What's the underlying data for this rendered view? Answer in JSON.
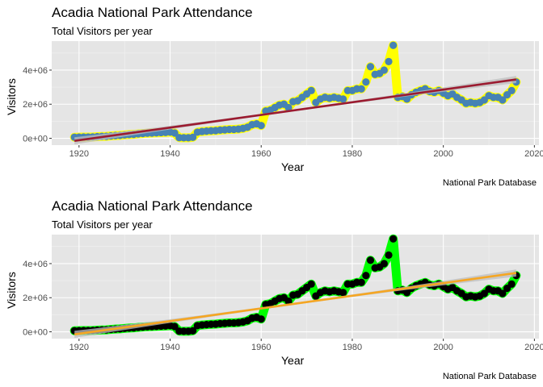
{
  "chart_data": [
    {
      "type": "line",
      "title": "Acadia National Park Attendance",
      "subtitle": "Total Visitors per year",
      "caption": "National Park Database",
      "xlabel": "Year",
      "ylabel": "Visitors",
      "xlim": [
        1914,
        2021
      ],
      "ylim": [
        -400000,
        5700000
      ],
      "x_ticks": [
        1920,
        1940,
        1960,
        1980,
        2000,
        2020
      ],
      "x_tick_labels": [
        "1920",
        "1940",
        "1960",
        "1980",
        "2000",
        "2020"
      ],
      "y_ticks": [
        0,
        2000000,
        4000000
      ],
      "y_tick_labels": [
        "0e+00",
        "2e+06",
        "4e+06"
      ],
      "grid": true,
      "colors": {
        "halo": "#ffff00",
        "points": "#4682b4",
        "trend": "#9b1b30",
        "band": "#bdbdbd",
        "background": "#e5e5e5"
      },
      "trend": {
        "x": [
          1919,
          2016
        ],
        "y": [
          -150000,
          3450000
        ]
      },
      "series": [
        {
          "x": [
            1919,
            1920,
            1921,
            1922,
            1923,
            1924,
            1925,
            1926,
            1927,
            1928,
            1929,
            1930,
            1931,
            1932,
            1933,
            1934,
            1935,
            1936,
            1937,
            1938,
            1939,
            1940,
            1941,
            1942,
            1943,
            1944,
            1945,
            1946,
            1947,
            1948,
            1949,
            1950,
            1951,
            1952,
            1953,
            1954,
            1955,
            1956,
            1957,
            1958,
            1959,
            1960,
            1961,
            1962,
            1963,
            1964,
            1965,
            1966,
            1967,
            1968,
            1969,
            1970,
            1971,
            1972,
            1973,
            1974,
            1975,
            1976,
            1977,
            1978,
            1979,
            1980,
            1981,
            1982,
            1983,
            1984,
            1985,
            1986,
            1987,
            1988,
            1989,
            1990,
            1991,
            1992,
            1993,
            1994,
            1995,
            1996,
            1997,
            1998,
            1999,
            2000,
            2001,
            2002,
            2003,
            2004,
            2005,
            2006,
            2007,
            2008,
            2009,
            2010,
            2011,
            2012,
            2013,
            2014,
            2015,
            2016
          ],
          "y": [
            64000,
            66500,
            73000,
            74000,
            80000,
            95000,
            110000,
            115000,
            140000,
            160000,
            175000,
            200000,
            220000,
            230000,
            260000,
            280000,
            300000,
            310000,
            320000,
            335000,
            345000,
            360000,
            310000,
            40000,
            30000,
            30000,
            60000,
            360000,
            400000,
            420000,
            440000,
            450000,
            480000,
            500000,
            520000,
            520000,
            540000,
            580000,
            650000,
            800000,
            850000,
            750000,
            1600000,
            1650000,
            1800000,
            1950000,
            2000000,
            1800000,
            2150000,
            2200000,
            2400000,
            2600000,
            2800000,
            2100000,
            2300000,
            2400000,
            2350000,
            2400000,
            2350000,
            2300000,
            2800000,
            2800000,
            2900000,
            2900000,
            3300000,
            4200000,
            3750000,
            3800000,
            4000000,
            4500000,
            5450000,
            2400000,
            2450000,
            2300000,
            2550000,
            2700000,
            2800000,
            2900000,
            2750000,
            2700000,
            2800000,
            2650000,
            2500000,
            2600000,
            2400000,
            2250000,
            2050000,
            2100000,
            2050000,
            2100000,
            2250000,
            2500000,
            2400000,
            2400000,
            2250000,
            2550000,
            2800000,
            3300000
          ]
        }
      ]
    },
    {
      "type": "line",
      "title": "Acadia National Park Attendance",
      "subtitle": "Total Visitors per year",
      "caption": "National Park Database",
      "xlabel": "Year",
      "ylabel": "Visitors",
      "xlim": [
        1914,
        2021
      ],
      "ylim": [
        -400000,
        5700000
      ],
      "x_ticks": [
        1920,
        1940,
        1960,
        1980,
        2000,
        2020
      ],
      "x_tick_labels": [
        "1920",
        "1940",
        "1960",
        "1980",
        "2000",
        "2020"
      ],
      "y_ticks": [
        0,
        2000000,
        4000000
      ],
      "y_tick_labels": [
        "0e+00",
        "2e+06",
        "4e+06"
      ],
      "grid": true,
      "colors": {
        "halo": "#00ff00",
        "points": "#000000",
        "trend": "#f5a623",
        "band": "#bdbdbd",
        "background": "#e5e5e5"
      },
      "trend": {
        "x": [
          1919,
          2016
        ],
        "y": [
          -150000,
          3450000
        ]
      },
      "series": [
        {
          "x": [
            1919,
            1920,
            1921,
            1922,
            1923,
            1924,
            1925,
            1926,
            1927,
            1928,
            1929,
            1930,
            1931,
            1932,
            1933,
            1934,
            1935,
            1936,
            1937,
            1938,
            1939,
            1940,
            1941,
            1942,
            1943,
            1944,
            1945,
            1946,
            1947,
            1948,
            1949,
            1950,
            1951,
            1952,
            1953,
            1954,
            1955,
            1956,
            1957,
            1958,
            1959,
            1960,
            1961,
            1962,
            1963,
            1964,
            1965,
            1966,
            1967,
            1968,
            1969,
            1970,
            1971,
            1972,
            1973,
            1974,
            1975,
            1976,
            1977,
            1978,
            1979,
            1980,
            1981,
            1982,
            1983,
            1984,
            1985,
            1986,
            1987,
            1988,
            1989,
            1990,
            1991,
            1992,
            1993,
            1994,
            1995,
            1996,
            1997,
            1998,
            1999,
            2000,
            2001,
            2002,
            2003,
            2004,
            2005,
            2006,
            2007,
            2008,
            2009,
            2010,
            2011,
            2012,
            2013,
            2014,
            2015,
            2016
          ],
          "y": [
            64000,
            66500,
            73000,
            74000,
            80000,
            95000,
            110000,
            115000,
            140000,
            160000,
            175000,
            200000,
            220000,
            230000,
            260000,
            280000,
            300000,
            310000,
            320000,
            335000,
            345000,
            360000,
            310000,
            40000,
            30000,
            30000,
            60000,
            360000,
            400000,
            420000,
            440000,
            450000,
            480000,
            500000,
            520000,
            520000,
            540000,
            580000,
            650000,
            800000,
            850000,
            750000,
            1600000,
            1650000,
            1800000,
            1950000,
            2000000,
            1800000,
            2150000,
            2200000,
            2400000,
            2600000,
            2800000,
            2100000,
            2300000,
            2400000,
            2350000,
            2400000,
            2350000,
            2300000,
            2800000,
            2800000,
            2900000,
            2900000,
            3300000,
            4200000,
            3750000,
            3800000,
            4000000,
            4500000,
            5450000,
            2400000,
            2450000,
            2300000,
            2550000,
            2700000,
            2800000,
            2900000,
            2750000,
            2700000,
            2800000,
            2650000,
            2500000,
            2600000,
            2400000,
            2250000,
            2050000,
            2100000,
            2050000,
            2100000,
            2250000,
            2500000,
            2400000,
            2400000,
            2250000,
            2550000,
            2800000,
            3300000
          ]
        }
      ]
    }
  ]
}
